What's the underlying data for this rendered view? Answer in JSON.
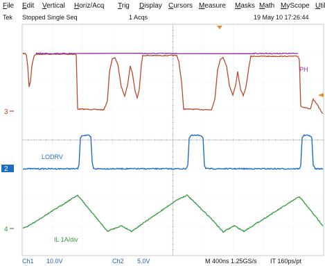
{
  "menu": {
    "items": [
      "File",
      "Edit",
      "Vertical",
      "Horiz/Acq",
      "Trig",
      "Display",
      "Cursors",
      "Measure",
      "Masks",
      "Math",
      "MyScope",
      "Utilities"
    ]
  },
  "status": {
    "brand": "Tek",
    "acq_state": "Stopped  Single Seq",
    "acq_count": "1 Acqs",
    "datetime": "19 May 10 17:26:44"
  },
  "channels": {
    "ch1_marker": "3",
    "ch2_marker": "2",
    "ch4_marker": "4",
    "ph_label": "PH",
    "lodrv_label": "LODRV",
    "il_label": "IL  1A/div"
  },
  "bottom": {
    "ch1_name": "Ch1",
    "ch1_scale": "10.0V",
    "ch2_name": "Ch2",
    "ch2_scale": "5.0V",
    "timebase": "M 400ns 1.25GS/s",
    "resolution": "IT 160ps/pt"
  },
  "colors": {
    "screen_bg": "#ffffff",
    "graticule": "#c8c8c8",
    "ch1_trace": "#b84a2a",
    "ph_trace": "#8e2a9e",
    "ch2_trace": "#1f6cc4",
    "ch4_trace": "#2e9a3a",
    "marker_ch2_bg": "#1f6cc4",
    "trigger_marker": "#e08a2a",
    "bottom_text": "#1f5fbf"
  }
}
